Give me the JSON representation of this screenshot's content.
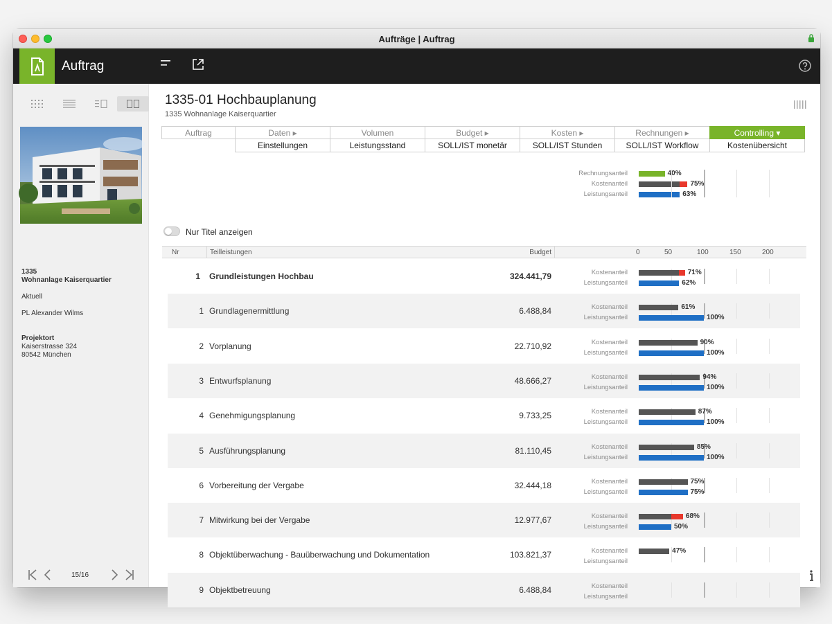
{
  "window": {
    "title": "Aufträge | Auftrag"
  },
  "toolbar": {
    "app_title": "Auftrag"
  },
  "sidebar": {
    "project_number": "1335",
    "project_name": "Wohnanlage Kaiserquartier",
    "status": "Aktuell",
    "manager": "PL Alexander Wilms",
    "location_label": "Projektort",
    "street": "Kaiserstrasse 324",
    "city": "80542 München",
    "pager": "15/16"
  },
  "header": {
    "title": "1335-01 Hochbauplanung",
    "subtitle": "1335 Wohnanlage Kaiserquartier"
  },
  "tabs": [
    {
      "label": "Auftrag",
      "active": false
    },
    {
      "label": "Daten ▸",
      "active": false
    },
    {
      "label": "Volumen",
      "active": false
    },
    {
      "label": "Budget ▸",
      "active": false
    },
    {
      "label": "Kosten ▸",
      "active": false
    },
    {
      "label": "Rechnungen ▸",
      "active": false
    },
    {
      "label": "Controlling ▾",
      "active": true
    }
  ],
  "subtabs": [
    {
      "label": "Einstellungen"
    },
    {
      "label": "Leistungsstand"
    },
    {
      "label": "SOLL/IST monetär"
    },
    {
      "label": "SOLL/IST Stunden"
    },
    {
      "label": "SOLL/IST Workflow"
    },
    {
      "label": "Kostenübersicht"
    }
  ],
  "summary": {
    "rechnungsanteil": {
      "label": "Rechnungsanteil",
      "value": 40,
      "display": "40%"
    },
    "kostenanteil": {
      "label": "Kostenanteil",
      "value": 75,
      "display": "75%"
    },
    "leistungsanteil": {
      "label": "Leistungsanteil",
      "value": 63,
      "display": "63%"
    }
  },
  "filter": {
    "toggle_label": "Nur Titel anzeigen"
  },
  "table": {
    "col_nr": "Nr",
    "col_title": "Teilleistungen",
    "col_budget": "Budget",
    "axis_ticks": [
      "0",
      "50",
      "100",
      "150",
      "200"
    ],
    "kosten_label": "Kostenanteil",
    "leistung_label": "Leistungsanteil",
    "rows": [
      {
        "nr": "1",
        "title": "Grundleistungen Hochbau",
        "budget": "324.441,79",
        "kosten": 71,
        "kosten_display": "71%",
        "leistung": 62,
        "leistung_display": "62%",
        "main": true
      },
      {
        "nr": "1",
        "title": "Grundlagenermittlung",
        "budget": "6.488,84",
        "kosten": 61,
        "kosten_display": "61%",
        "leistung": 100,
        "leistung_display": "100%",
        "main": false
      },
      {
        "nr": "2",
        "title": "Vorplanung",
        "budget": "22.710,92",
        "kosten": 90,
        "kosten_display": "90%",
        "leistung": 100,
        "leistung_display": "100%",
        "main": false
      },
      {
        "nr": "3",
        "title": "Entwurfsplanung",
        "budget": "48.666,27",
        "kosten": 94,
        "kosten_display": "94%",
        "leistung": 100,
        "leistung_display": "100%",
        "main": false
      },
      {
        "nr": "4",
        "title": "Genehmigungsplanung",
        "budget": "9.733,25",
        "kosten": 87,
        "kosten_display": "87%",
        "leistung": 100,
        "leistung_display": "100%",
        "main": false
      },
      {
        "nr": "5",
        "title": "Ausführungsplanung",
        "budget": "81.110,45",
        "kosten": 85,
        "kosten_display": "85%",
        "leistung": 100,
        "leistung_display": "100%",
        "main": false
      },
      {
        "nr": "6",
        "title": "Vorbereitung der Vergabe",
        "budget": "32.444,18",
        "kosten": 75,
        "kosten_display": "75%",
        "leistung": 75,
        "leistung_display": "75%",
        "main": false
      },
      {
        "nr": "7",
        "title": "Mitwirkung bei der Vergabe",
        "budget": "12.977,67",
        "kosten": 68,
        "kosten_display": "68%",
        "leistung": 50,
        "leistung_display": "50%",
        "main": false
      },
      {
        "nr": "8",
        "title": "Objektüberwachung - Bauüberwachung und Dokumentation",
        "budget": "103.821,37",
        "kosten": 47,
        "kosten_display": "47%",
        "leistung": null,
        "leistung_display": "",
        "main": false
      },
      {
        "nr": "9",
        "title": "Objektbetreuung",
        "budget": "6.488,84",
        "kosten": null,
        "kosten_display": "",
        "leistung": null,
        "leistung_display": "",
        "main": false
      }
    ]
  },
  "colors": {
    "accent_green": "#79b42a",
    "bar_gray": "#555555",
    "bar_red": "#e8382c",
    "bar_blue": "#1f6fc5"
  }
}
